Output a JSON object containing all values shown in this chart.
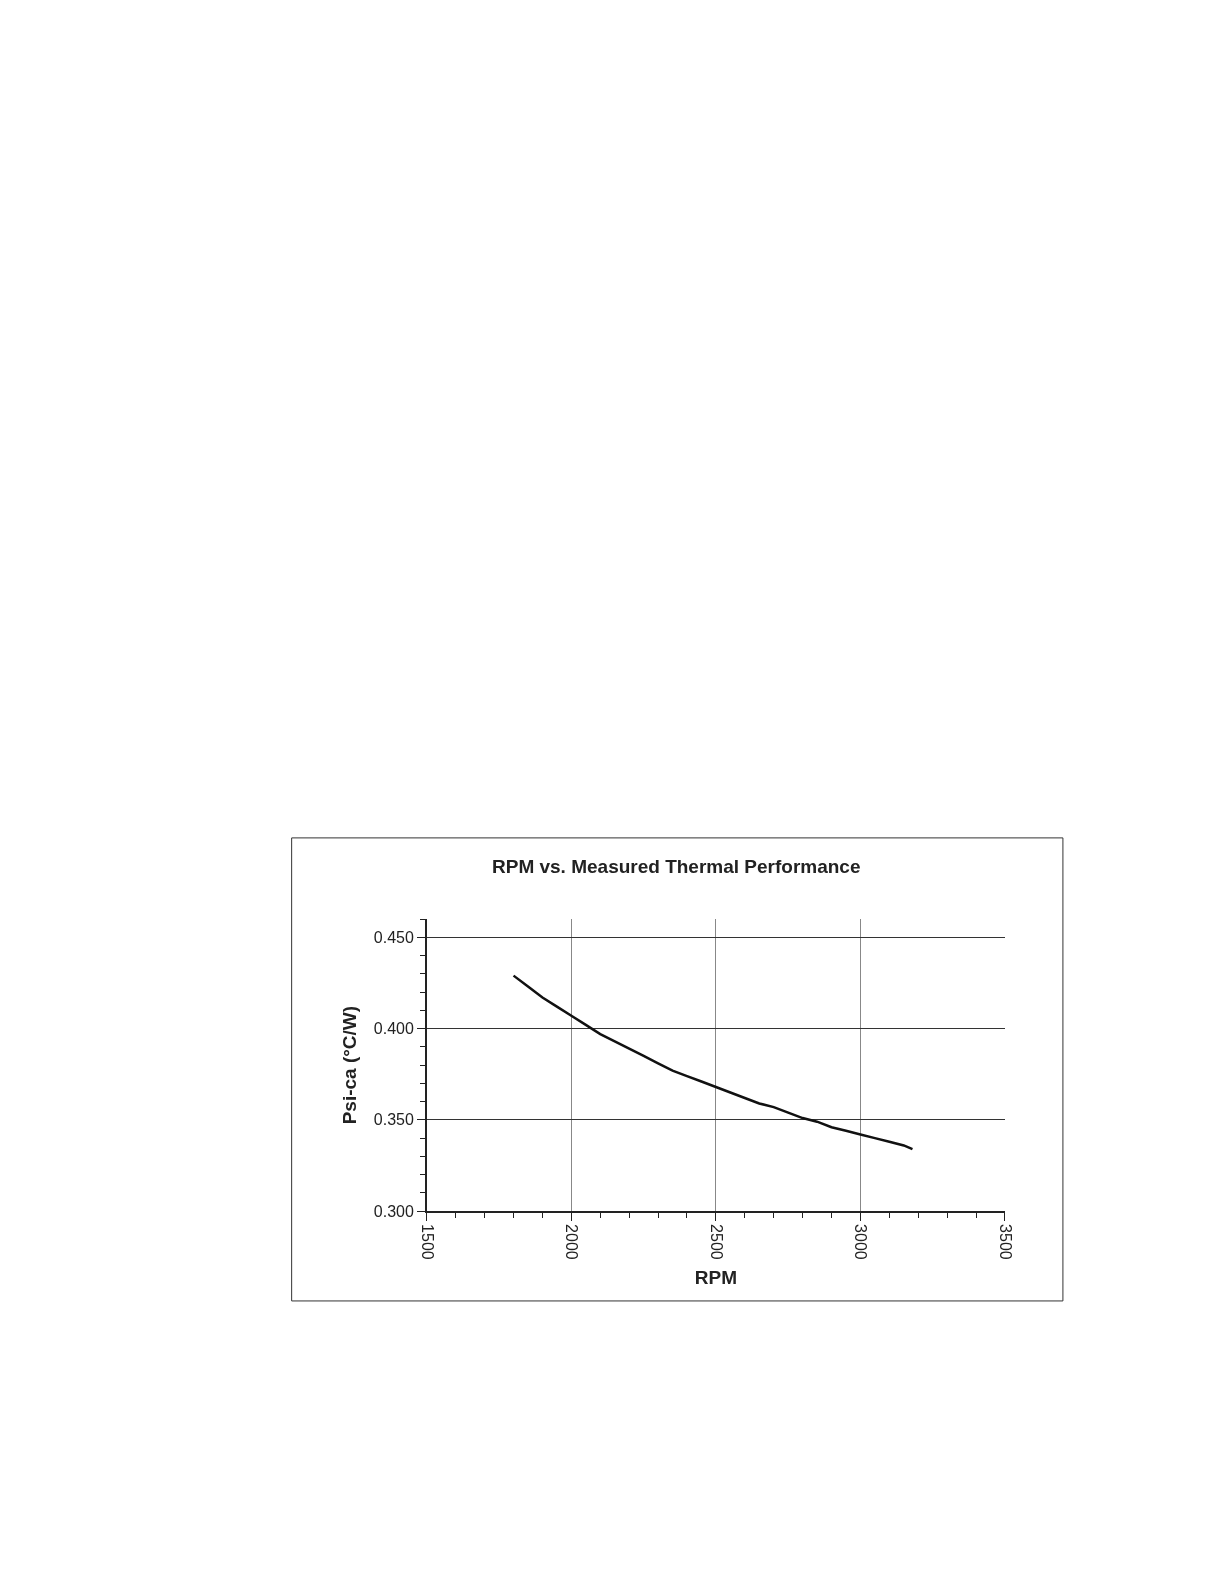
{
  "chart_data": {
    "type": "line",
    "title": "RPM vs. Measured Thermal Performance",
    "xlabel": "RPM",
    "ylabel": "Psi-ca (°C/W)",
    "x": [
      1800,
      1850,
      1900,
      1950,
      2000,
      2050,
      2100,
      2150,
      2200,
      2250,
      2300,
      2350,
      2400,
      2450,
      2500,
      2550,
      2600,
      2650,
      2700,
      2750,
      2800,
      2850,
      2900,
      2950,
      3000,
      3050,
      3100,
      3150,
      3180
    ],
    "series": [
      {
        "color": "#111111",
        "values": [
          0.429,
          0.423,
          0.417,
          0.412,
          0.407,
          0.402,
          0.397,
          0.393,
          0.389,
          0.385,
          0.381,
          0.377,
          0.374,
          0.371,
          0.368,
          0.365,
          0.362,
          0.359,
          0.357,
          0.354,
          0.351,
          0.349,
          0.346,
          0.344,
          0.342,
          0.34,
          0.338,
          0.336,
          0.334
        ]
      }
    ],
    "xlim": [
      1500,
      3500
    ],
    "xticks": [
      1500,
      2000,
      2500,
      3000,
      3500
    ],
    "ylim": [
      0.3,
      0.46
    ],
    "yticks": [
      {
        "value": 0.3,
        "label": "0.300"
      },
      {
        "value": 0.35,
        "label": "0.350"
      },
      {
        "value": 0.4,
        "label": "0.400"
      },
      {
        "value": 0.45,
        "label": "0.450"
      }
    ],
    "grid": true,
    "marker": "none",
    "line_style": "solid"
  }
}
